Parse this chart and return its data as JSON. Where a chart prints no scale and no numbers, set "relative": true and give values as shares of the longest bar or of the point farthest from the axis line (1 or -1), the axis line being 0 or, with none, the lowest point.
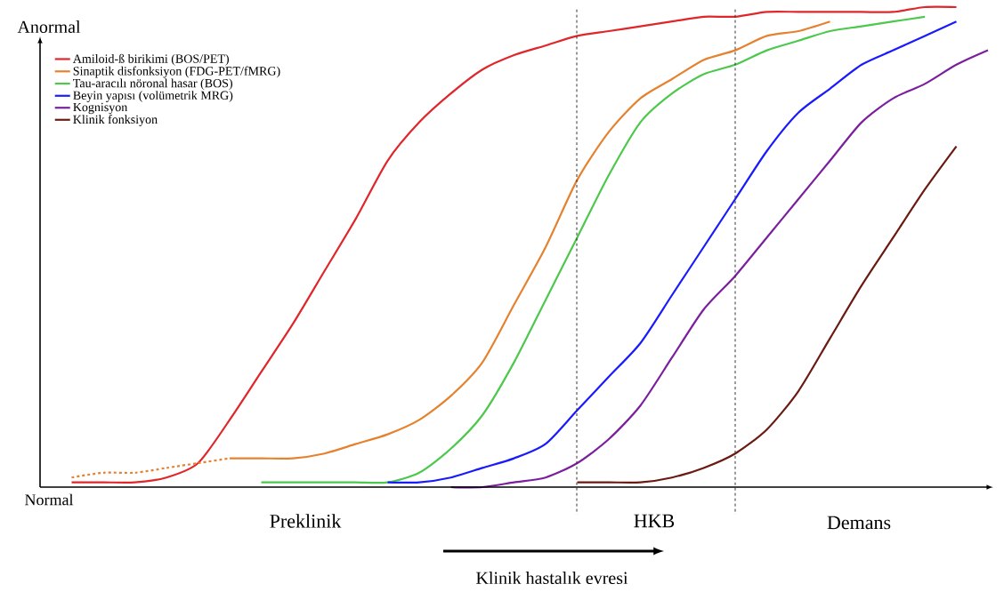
{
  "chart_data": {
    "type": "line",
    "relative": true,
    "legend": "top left",
    "categories": [
      null,
      null,
      null,
      null,
      null,
      null,
      null,
      null,
      null,
      null,
      null,
      null,
      null,
      null,
      null,
      null,
      null,
      null,
      null,
      null,
      null,
      null,
      null,
      null,
      null,
      null,
      null,
      null,
      null,
      null,
      null
    ],
    "series": [
      {
        "name": "Amiloid-ß birikimi (BOS/PET)",
        "color": "#e0262a",
        "values": [
          null,
          0.01,
          0.01,
          0.01,
          0.02,
          0.05,
          0.14,
          0.24,
          0.34,
          0.45,
          0.56,
          0.68,
          0.76,
          0.82,
          0.87,
          0.9,
          0.92,
          0.94,
          0.95,
          0.96,
          0.97,
          0.98,
          0.98,
          0.99,
          0.99,
          0.99,
          0.99,
          0.99,
          1.0,
          1.0,
          null
        ]
      },
      {
        "name": "Sinaptik disfonksiyon (FDG-PET/fMRG)",
        "color": "#e5822f",
        "values": [
          null,
          null,
          null,
          null,
          null,
          null,
          0.06,
          0.06,
          0.06,
          0.07,
          0.09,
          0.11,
          0.14,
          0.19,
          0.26,
          0.38,
          0.5,
          0.64,
          0.74,
          0.81,
          0.85,
          0.89,
          0.91,
          0.94,
          0.95,
          0.97,
          null,
          null,
          null,
          null,
          null
        ]
      },
      {
        "color": "#e5822f",
        "line_style": "dashed",
        "values": [
          null,
          0.02,
          0.03,
          0.03,
          0.04,
          0.05,
          0.06,
          null,
          null,
          null,
          null,
          null,
          null,
          null,
          null,
          null,
          null,
          null,
          null,
          null,
          null,
          null,
          null,
          null,
          null,
          null,
          null,
          null,
          null,
          null,
          null
        ]
      },
      {
        "name": "Tau-aracılı nöronal hasar (BOS)",
        "color": "#4cc84c",
        "values": [
          null,
          null,
          null,
          null,
          null,
          null,
          null,
          0.01,
          0.01,
          0.01,
          0.01,
          0.01,
          0.03,
          0.08,
          0.15,
          0.26,
          0.39,
          0.52,
          0.65,
          0.76,
          0.82,
          0.86,
          0.88,
          0.91,
          0.93,
          0.95,
          0.96,
          0.97,
          0.98,
          null,
          null
        ]
      },
      {
        "name": "Beyin yapısı (volümetrik MRG)",
        "color": "#1a1aff",
        "values": [
          null,
          null,
          null,
          null,
          null,
          null,
          null,
          null,
          null,
          null,
          null,
          0.01,
          0.01,
          0.02,
          0.04,
          0.06,
          0.09,
          0.16,
          0.23,
          0.3,
          0.4,
          0.5,
          0.6,
          0.7,
          0.78,
          0.83,
          0.88,
          0.91,
          0.94,
          0.97,
          null
        ]
      },
      {
        "name": "Kognisyon",
        "color": "#7b1f9e",
        "values": [
          null,
          null,
          null,
          null,
          null,
          null,
          null,
          null,
          null,
          null,
          null,
          null,
          null,
          0,
          0,
          0.01,
          0.02,
          0.05,
          0.1,
          0.17,
          0.27,
          0.37,
          0.44,
          0.52,
          0.6,
          0.68,
          0.76,
          0.81,
          0.84,
          0.88,
          0.91
        ]
      },
      {
        "name": "Klinik fonksiyon",
        "color": "#6b1a12",
        "values": [
          null,
          null,
          null,
          null,
          null,
          null,
          null,
          null,
          null,
          null,
          null,
          null,
          null,
          null,
          null,
          null,
          null,
          0.01,
          0.01,
          0.01,
          0.02,
          0.04,
          0.07,
          0.12,
          0.2,
          0.31,
          0.42,
          0.52,
          0.62,
          0.71,
          null
        ]
      }
    ],
    "annotations": [
      "Anormal",
      "Normal",
      "Preklinik",
      "HKB",
      "Demans",
      "Klinik hastalık evresi"
    ]
  }
}
